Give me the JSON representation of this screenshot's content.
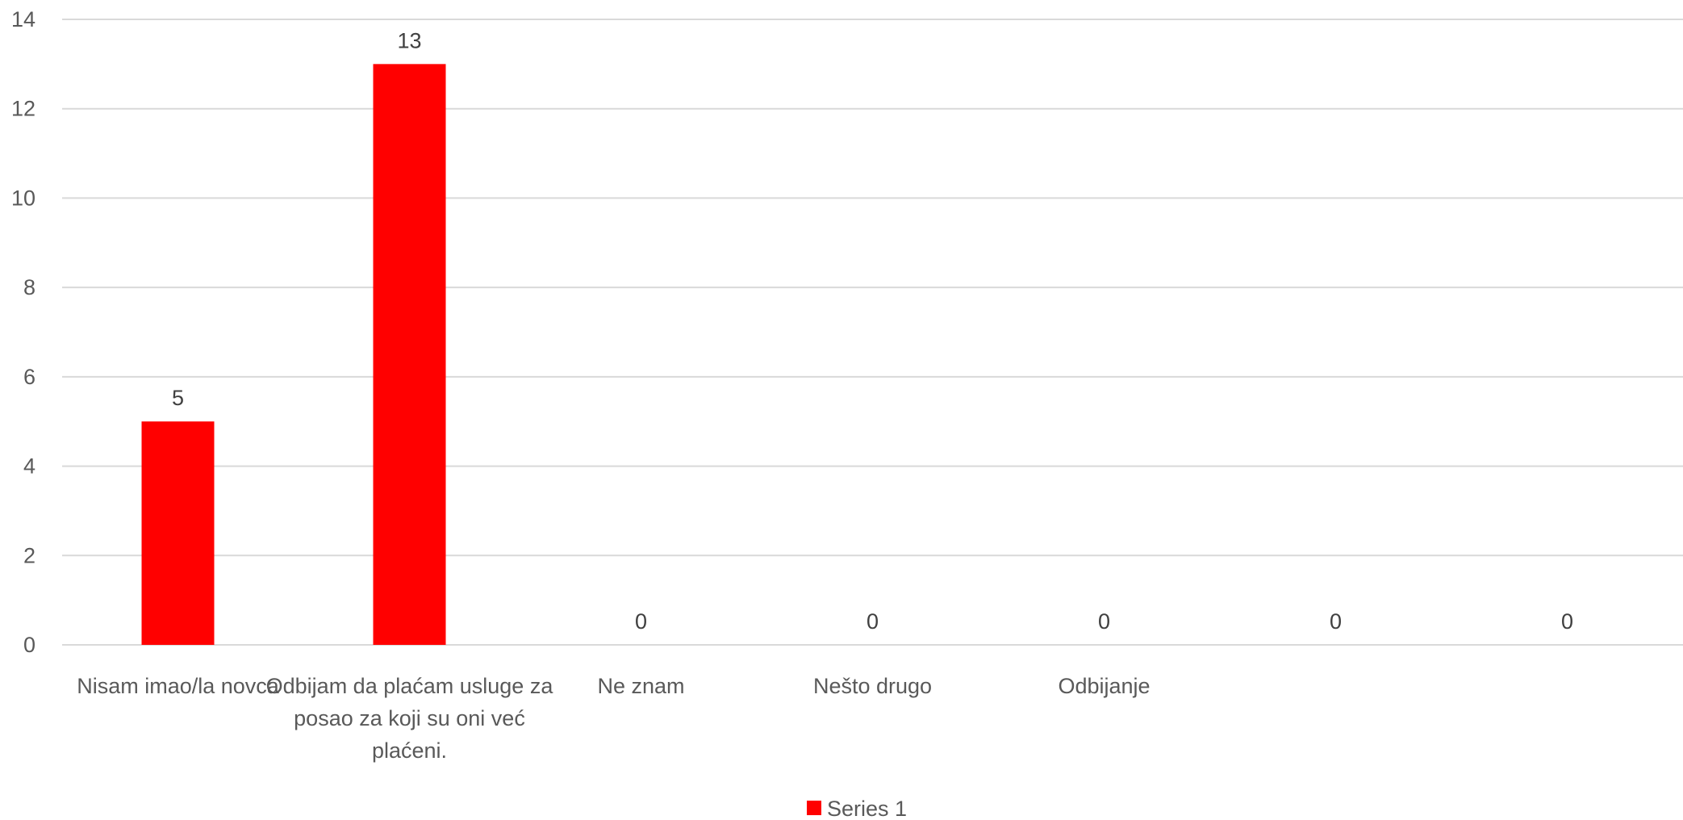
{
  "chart_data": {
    "type": "bar",
    "title": "",
    "xlabel": "",
    "ylabel": "",
    "categories": [
      "Nisam imao/la novca",
      "Odbijam da plaćam usluge za posao za koji su oni već plaćeni.",
      "Ne znam",
      "Nešto drugo",
      "Odbijanje",
      "",
      ""
    ],
    "category_lines": [
      [
        "Nisam imao/la novca"
      ],
      [
        "Odbijam da plaćam usluge za",
        "posao za koji su oni već",
        "plaćeni."
      ],
      [
        "Ne znam"
      ],
      [
        "Nešto drugo"
      ],
      [
        "Odbijanje"
      ],
      [],
      []
    ],
    "series": [
      {
        "name": "Series 1",
        "values": [
          5,
          13,
          0,
          0,
          0,
          0,
          0
        ],
        "color": "#FF0000"
      }
    ],
    "ylim": [
      0,
      14
    ],
    "yticks": [
      0,
      2,
      4,
      6,
      8,
      10,
      12,
      14
    ],
    "grid": true,
    "legend": "bottom-center",
    "data_labels": true,
    "colors": {
      "bar": "#FF0000",
      "grid": "#D9D9D9",
      "text": "#595959"
    }
  }
}
